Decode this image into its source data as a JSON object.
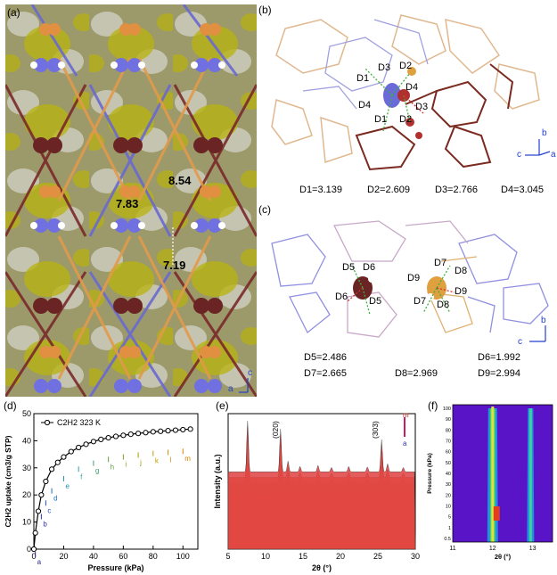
{
  "panels": {
    "a": {
      "label": "(a)",
      "dist1": "8.54",
      "dist2": "7.83",
      "dist3": "7.19",
      "axis_c": "c",
      "axis_a": "a"
    },
    "b": {
      "label": "(b)",
      "atom_labels": [
        "D1",
        "D2",
        "D3",
        "D4",
        "D4",
        "D1",
        "D2",
        "D3"
      ],
      "axis_b": "b",
      "axis_c": "c",
      "axis_a": "a",
      "distances": [
        "D1=3.139",
        "D2=2.609",
        "D3=2.766",
        "D4=3.045"
      ]
    },
    "c": {
      "label": "(c)",
      "atom_labels": [
        "D5",
        "D6",
        "D6",
        "D5",
        "D7",
        "D8",
        "D9",
        "D9",
        "D7",
        "D8"
      ],
      "axis_b": "b",
      "axis_c": "c",
      "distances": [
        "D5=2.486",
        "D6=1.992",
        "D7=2.665",
        "D8=2.969",
        "D9=2.994"
      ]
    },
    "d": {
      "label": "(d)"
    },
    "e": {
      "label": "(e)"
    },
    "f": {
      "label": "(f)"
    }
  },
  "chart_data": [
    {
      "type": "line",
      "panel": "d",
      "title": "",
      "legend": "C2H2 323 K",
      "xlabel": "Pressure (kPa)",
      "ylabel": "C2H2 uptake (cm3/g STP)",
      "xlim": [
        0,
        110
      ],
      "ylim": [
        0,
        50
      ],
      "xticks": [
        0,
        20,
        40,
        60,
        80,
        100
      ],
      "yticks": [
        0,
        10,
        20,
        30,
        40,
        50
      ],
      "x": [
        0,
        1,
        3,
        5,
        8,
        12,
        16,
        20,
        25,
        30,
        35,
        40,
        45,
        50,
        55,
        60,
        65,
        70,
        75,
        80,
        85,
        90,
        95,
        100,
        105
      ],
      "y": [
        0,
        6,
        14,
        20,
        25,
        29.5,
        32,
        34,
        36,
        37.5,
        38.7,
        39.7,
        40.5,
        41.1,
        41.6,
        42,
        42.4,
        42.7,
        43,
        43.3,
        43.5,
        43.7,
        43.9,
        44.1,
        44.3
      ],
      "markers": {
        "letters": [
          "a",
          "b",
          "c",
          "d",
          "e",
          "f",
          "g",
          "h",
          "i",
          "j",
          "k",
          "l",
          "m"
        ],
        "x": [
          1,
          5,
          8,
          12,
          20,
          30,
          40,
          50,
          60,
          70,
          80,
          90,
          100
        ]
      }
    },
    {
      "type": "line",
      "panel": "e",
      "xlabel": "2θ (°)",
      "ylabel": "Intensity (a.u.)",
      "xlim": [
        5,
        30
      ],
      "xticks": [
        5,
        10,
        15,
        20,
        25,
        30
      ],
      "peak_labels": [
        "(020)",
        "(303)"
      ],
      "peak_positions": [
        12.0,
        25.5
      ],
      "series_count": 13,
      "legend_top": "m",
      "legend_bottom": "a"
    },
    {
      "type": "heatmap",
      "panel": "f",
      "xlabel": "2θ (°)",
      "ylabel": "Pressure (kPa)",
      "xlim": [
        11,
        13.5
      ],
      "xticks": [
        11,
        12,
        13
      ],
      "yticks": [
        "0.5",
        "1",
        "5",
        "10",
        "20",
        "30",
        "40",
        "50",
        "60",
        "70",
        "80",
        "90",
        "100"
      ],
      "peak_positions": [
        12.0,
        12.95
      ]
    }
  ]
}
